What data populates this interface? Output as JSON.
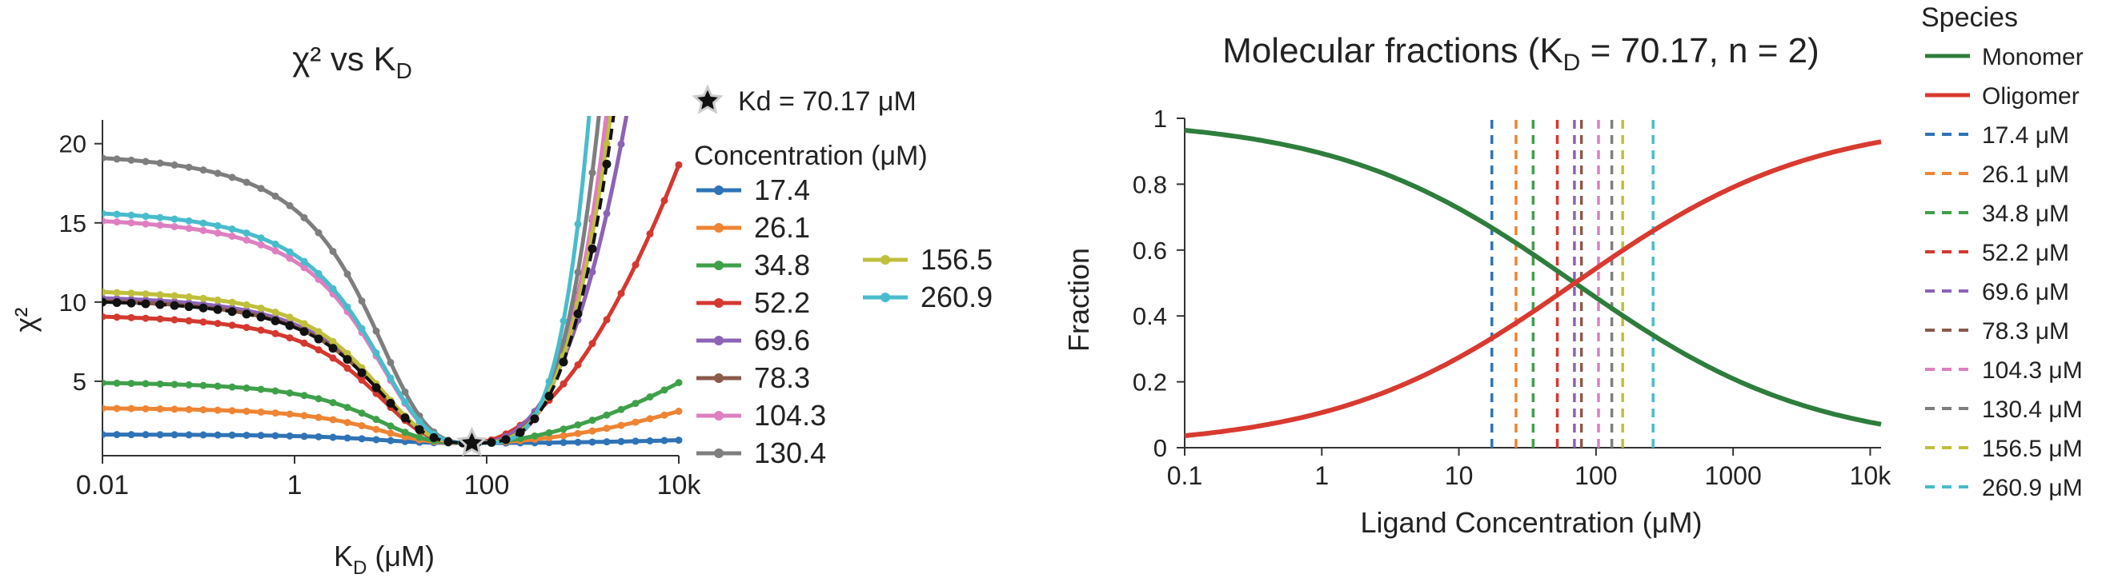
{
  "chart_data": [
    {
      "type": "line",
      "title": "χ² vs K",
      "title_sub": "D",
      "xlabel": "K",
      "xlabel_sub": "D",
      "xlabel_unit": " (μM)",
      "ylabel": "χ²",
      "xscale": "log",
      "xlim": [
        0.01,
        10000
      ],
      "ylim": [
        0.3,
        21.5
      ],
      "xticks": [
        {
          "value": 0.01,
          "label": "0.01"
        },
        {
          "value": 1,
          "label": "1"
        },
        {
          "value": 100,
          "label": "100"
        },
        {
          "value": 10000,
          "label": "10k"
        }
      ],
      "yticks": [
        {
          "value": 5,
          "label": "5"
        },
        {
          "value": 10,
          "label": "10"
        },
        {
          "value": 15,
          "label": "15"
        },
        {
          "value": 20,
          "label": "20"
        }
      ],
      "best_fit": {
        "kd": 70.17,
        "label": "Kd = 70.17 μM",
        "chi2_min": 1.1
      },
      "legend_title": "Concentration (μM)",
      "series": [
        {
          "name": "17.4",
          "color": "#2f73b6",
          "left": 1.65,
          "right": 1.28,
          "right_shape": 1.0
        },
        {
          "name": "26.1",
          "color": "#ee8434",
          "left": 3.35,
          "right": 3.1,
          "right_shape": 0.9
        },
        {
          "name": "34.8",
          "color": "#3fa04a",
          "left": 5.0,
          "right": 4.9,
          "right_shape": 0.9
        },
        {
          "name": "52.2",
          "color": "#d4382f",
          "left": 9.3,
          "right": 18.6,
          "right_shape": 0.95
        },
        {
          "name": "69.6",
          "color": "#8c63b5",
          "left": 10.5,
          "right": 45,
          "right_shape": 1.3
        },
        {
          "name": "78.3",
          "color": "#8a5a4a",
          "left": 10.3,
          "right": 80,
          "right_shape": 1.6
        },
        {
          "name": "104.3",
          "color": "#dd7fc0",
          "left": 15.5,
          "right": 90,
          "right_shape": 1.7
        },
        {
          "name": "130.4",
          "color": "#7e7e7e",
          "left": 19.6,
          "right": 120,
          "right_shape": 1.8
        },
        {
          "name": "156.5",
          "color": "#c0bf3c",
          "left": 10.9,
          "right": 75,
          "right_shape": 1.6
        },
        {
          "name": "260.9",
          "color": "#49bccc",
          "left": 16.0,
          "right": 200,
          "right_shape": 2.0
        }
      ],
      "mean_series": {
        "color": "#111111",
        "left": 10.25,
        "right": 70,
        "right_shape": 1.6,
        "style": "dashed-dots"
      }
    },
    {
      "type": "line",
      "title": "Molecular fractions (K",
      "title_sub": "D",
      "title_tail": " = 70.17, n = 2)",
      "xlabel": "Ligand Concentration (μM)",
      "ylabel": "Fraction",
      "xscale": "log",
      "xlim": [
        0.1,
        12000
      ],
      "ylim": [
        0,
        1
      ],
      "xticks": [
        {
          "value": 0.1,
          "label": "0.1"
        },
        {
          "value": 1,
          "label": "1"
        },
        {
          "value": 10,
          "label": "10"
        },
        {
          "value": 100,
          "label": "100"
        },
        {
          "value": 1000,
          "label": "1000"
        },
        {
          "value": 10000,
          "label": "10k"
        }
      ],
      "yticks": [
        {
          "value": 0,
          "label": "0"
        },
        {
          "value": 0.2,
          "label": "0.2"
        },
        {
          "value": 0.4,
          "label": "0.4"
        },
        {
          "value": 0.6,
          "label": "0.6"
        },
        {
          "value": 0.8,
          "label": "0.8"
        },
        {
          "value": 1,
          "label": "1"
        }
      ],
      "kd": 70.17,
      "n": 2,
      "legend_title": "Species",
      "series": [
        {
          "name": "Monomer",
          "color": "#2e7d3c"
        },
        {
          "name": "Oligomer",
          "color": "#d93a30"
        }
      ],
      "vlines": [
        {
          "name": "17.4 μM",
          "x": 17.4,
          "color": "#2f73b6"
        },
        {
          "name": "26.1 μM",
          "x": 26.1,
          "color": "#ee8434"
        },
        {
          "name": "34.8 μM",
          "x": 34.8,
          "color": "#3fa04a"
        },
        {
          "name": "52.2 μM",
          "x": 52.2,
          "color": "#d4382f"
        },
        {
          "name": "69.6 μM",
          "x": 69.6,
          "color": "#8c63b5"
        },
        {
          "name": "78.3 μM",
          "x": 78.3,
          "color": "#8a5a4a"
        },
        {
          "name": "104.3 μM",
          "x": 104.3,
          "color": "#dd7fc0"
        },
        {
          "name": "130.4 μM",
          "x": 130.4,
          "color": "#7e7e7e"
        },
        {
          "name": "156.5 μM",
          "x": 156.5,
          "color": "#c0bf3c"
        },
        {
          "name": "260.9 μM",
          "x": 260.9,
          "color": "#49bccc"
        }
      ]
    }
  ]
}
